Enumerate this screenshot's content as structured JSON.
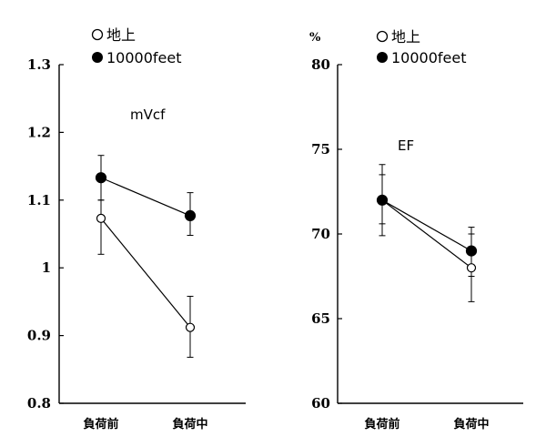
{
  "chart_data": [
    {
      "type": "line",
      "title": "mVcf",
      "unit": "",
      "categories": [
        "負荷前",
        "負荷中"
      ],
      "ylim": [
        0.8,
        1.3
      ],
      "yticks": [
        0.8,
        0.9,
        1,
        1.1,
        1.2,
        1.3
      ],
      "ytick_labels": [
        "0.8",
        "0.9",
        "1",
        "1.1",
        "1.2",
        "1.3"
      ],
      "series": [
        {
          "name": "地上",
          "marker": "open",
          "values": [
            1.073,
            0.912
          ],
          "err_low": [
            1.02,
            0.868
          ],
          "err_high": [
            1.1,
            0.958
          ]
        },
        {
          "name": "10000feet",
          "marker": "filled",
          "values": [
            1.133,
            1.077
          ],
          "err_low": [
            1.1,
            1.048
          ],
          "err_high": [
            1.166,
            1.111
          ]
        }
      ]
    },
    {
      "type": "line",
      "title": "EF",
      "unit": "%",
      "categories": [
        "負荷前",
        "負荷中"
      ],
      "ylim": [
        60,
        80
      ],
      "yticks": [
        60,
        65,
        70,
        75,
        80
      ],
      "ytick_labels": [
        "60",
        "65",
        "70",
        "75",
        "80"
      ],
      "series": [
        {
          "name": "地上",
          "marker": "open",
          "values": [
            72.0,
            68.0
          ],
          "err_low": [
            70.6,
            66.0
          ],
          "err_high": [
            73.5,
            70.0
          ]
        },
        {
          "name": "10000feet",
          "marker": "filled",
          "values": [
            72.0,
            69.0
          ],
          "err_low": [
            69.9,
            67.5
          ],
          "err_high": [
            74.1,
            70.4
          ]
        }
      ]
    }
  ],
  "legend": {
    "open_marker_label": "地上",
    "filled_marker_label": "10000feet"
  }
}
